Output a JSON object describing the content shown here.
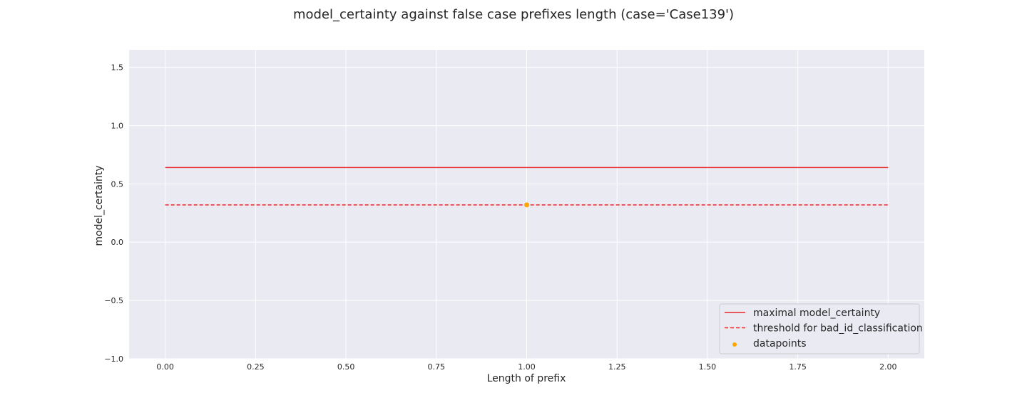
{
  "chart_data": {
    "type": "line",
    "title": "model_certainty against false case prefixes length (case='Case139')",
    "xlabel": "Length of prefix",
    "ylabel": "model_certainty",
    "xlim": [
      -0.1,
      2.1
    ],
    "ylim": [
      -1.0,
      1.65
    ],
    "xticks": [
      0.0,
      0.25,
      0.5,
      0.75,
      1.0,
      1.25,
      1.5,
      1.75,
      2.0
    ],
    "xtick_labels": [
      "0.00",
      "0.25",
      "0.50",
      "0.75",
      "1.00",
      "1.25",
      "1.50",
      "1.75",
      "2.00"
    ],
    "yticks": [
      -1.0,
      -0.5,
      0.0,
      0.5,
      1.0,
      1.5
    ],
    "ytick_labels": [
      "−1.0",
      "−0.5",
      "0.0",
      "0.5",
      "1.0",
      "1.5"
    ],
    "grid": true,
    "background": "#eaeaf2",
    "legend_position": "bottom-right",
    "series": [
      {
        "name": "maximal model_certainty",
        "kind": "line",
        "style": "solid",
        "color": "#e8282b",
        "x": [
          0.0,
          2.0
        ],
        "y": [
          0.64,
          0.64
        ]
      },
      {
        "name": "threshold for bad_id_classification",
        "kind": "line",
        "style": "dashed",
        "color": "#e8282b",
        "x": [
          0.0,
          2.0
        ],
        "y": [
          0.32,
          0.32
        ]
      },
      {
        "name": "datapoints",
        "kind": "scatter",
        "color": "#ffa500",
        "x": [
          1.0
        ],
        "y": [
          0.32
        ]
      }
    ]
  }
}
